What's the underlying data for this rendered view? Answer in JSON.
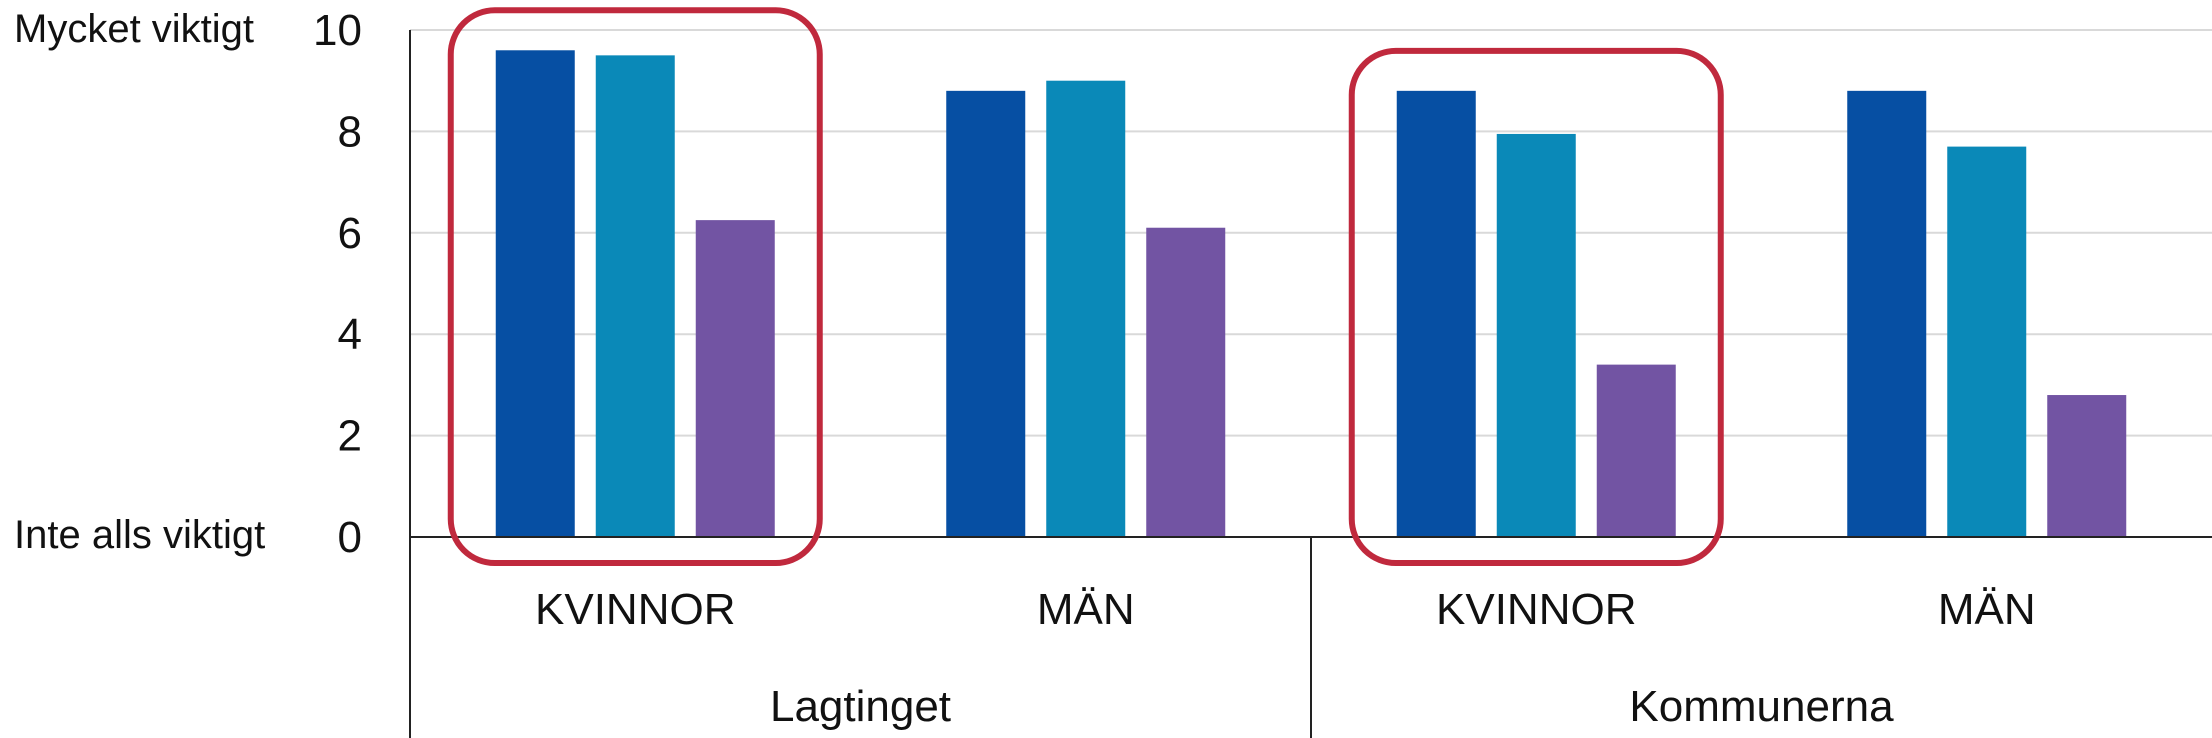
{
  "chart_data": {
    "type": "bar",
    "y_axis": {
      "ylim": [
        0,
        10
      ],
      "ticks": [
        "0",
        "2",
        "4",
        "6",
        "8",
        "10"
      ],
      "top_label": "Mycket viktigt",
      "bottom_label": "Inte alls viktigt"
    },
    "groups": [
      {
        "label": "Lagtinget",
        "categories": [
          {
            "label": "KVINNOR",
            "values": [
              9.6,
              9.5,
              6.25
            ],
            "highlighted": true
          },
          {
            "label": "MÄN",
            "values": [
              8.8,
              9.0,
              6.1
            ],
            "highlighted": false
          }
        ]
      },
      {
        "label": "Kommunerna",
        "categories": [
          {
            "label": "KVINNOR",
            "values": [
              8.8,
              7.95,
              3.4
            ],
            "highlighted": true
          },
          {
            "label": "MÄN",
            "values": [
              8.8,
              7.7,
              2.8
            ],
            "highlighted": false
          }
        ]
      }
    ],
    "series_colors": [
      "#064fa3",
      "#0a89b8",
      "#7254a3"
    ],
    "highlight_color": "#c0293d",
    "gridlines": true,
    "legend": "none"
  }
}
